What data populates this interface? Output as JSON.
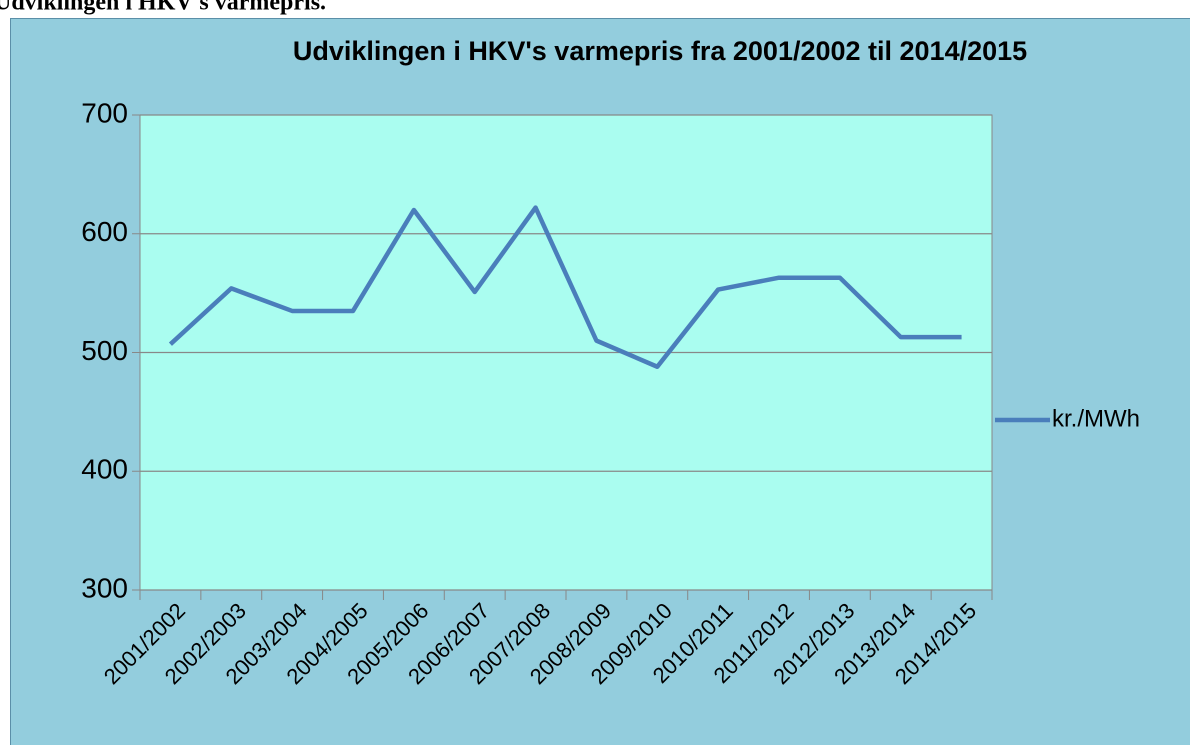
{
  "caption": "Udviklingen i HKV's varmepris.",
  "chart_data": {
    "type": "line",
    "title": "Udviklingen i HKV's varmepris fra 2001/2002 til 2014/2015",
    "categories": [
      "2001/2002",
      "2002/2003",
      "2003/2004",
      "2004/2005",
      "2005/2006",
      "2006/2007",
      "2007/2008",
      "2008/2009",
      "2009/2010",
      "2010/2011",
      "2011/2012",
      "2012/2013",
      "2013/2014",
      "2014/2015"
    ],
    "series": [
      {
        "name": "kr./MWh",
        "color": "#4a7ebb",
        "values": [
          507,
          554,
          535,
          535,
          620,
          551,
          622,
          510,
          488,
          553,
          563,
          563,
          513,
          513
        ]
      }
    ],
    "ylim": [
      300,
      700
    ],
    "yticks": [
      300,
      400,
      500,
      600,
      700
    ],
    "grid": true,
    "legend": "right"
  }
}
